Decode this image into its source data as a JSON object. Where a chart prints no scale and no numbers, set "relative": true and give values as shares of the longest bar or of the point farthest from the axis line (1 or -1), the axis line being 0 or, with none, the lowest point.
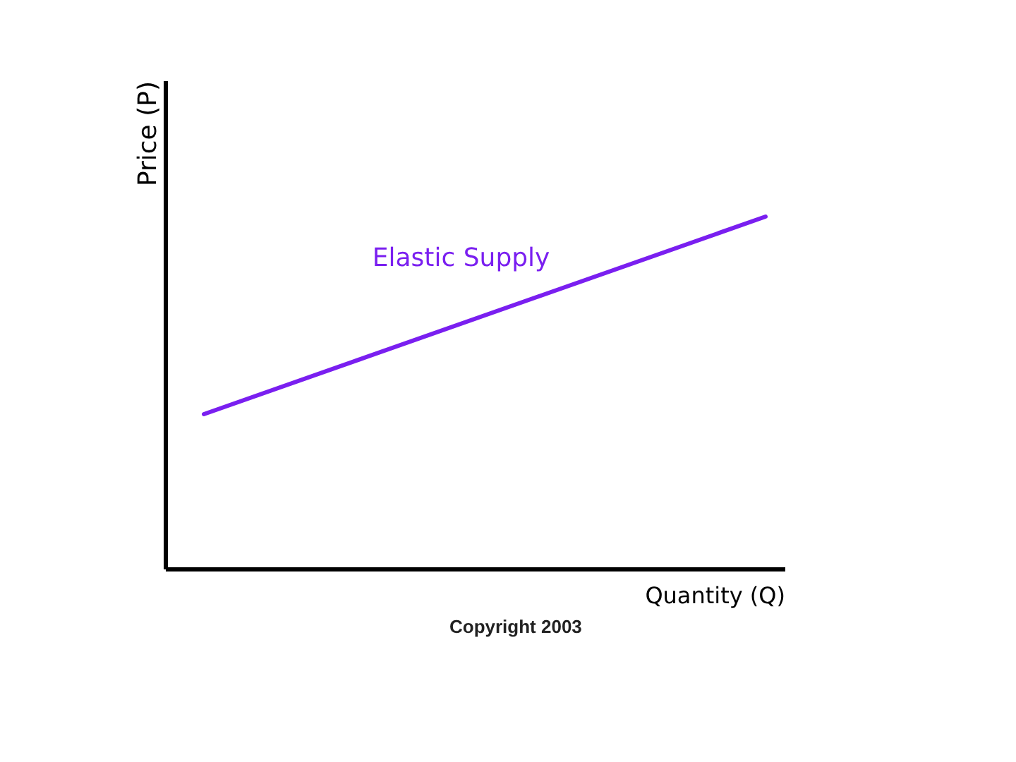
{
  "chart_data": {
    "type": "line",
    "xlabel": "Quantity (Q)",
    "ylabel": "Price (P)",
    "categories": [
      null,
      null
    ],
    "relative": true,
    "series": [
      {
        "name": "Elastic Supply",
        "color": "#7a1ff0",
        "values": [
          0.44,
          1
        ]
      }
    ],
    "annotations": [
      "Copyright 2003"
    ]
  }
}
